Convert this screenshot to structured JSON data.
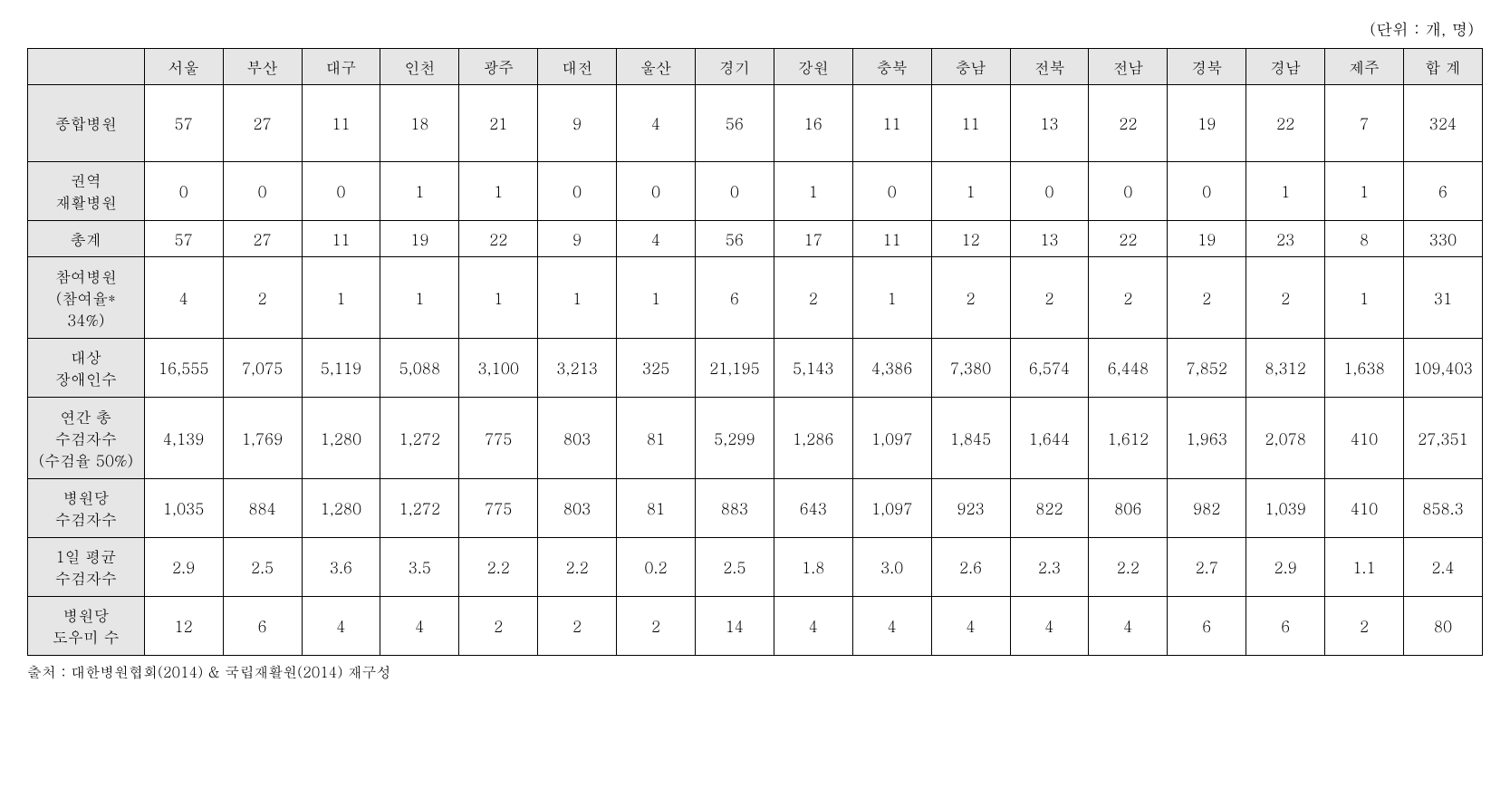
{
  "unit_label": "(단위 : 개, 명)",
  "source_note": "출처 : 대한병원협회(2014) & 국립재활원(2014) 재구성",
  "table": {
    "columns": [
      "",
      "서울",
      "부산",
      "대구",
      "인천",
      "광주",
      "대전",
      "울산",
      "경기",
      "강원",
      "충북",
      "충남",
      "전북",
      "전남",
      "경북",
      "경남",
      "제주",
      "합 계"
    ],
    "rows": [
      {
        "label": "종합병원",
        "height_class": "tall-row",
        "values": [
          "57",
          "27",
          "11",
          "18",
          "21",
          "9",
          "4",
          "56",
          "16",
          "11",
          "11",
          "13",
          "22",
          "19",
          "22",
          "7",
          "324"
        ]
      },
      {
        "label": "권역\n재활병원",
        "height_class": "med-row",
        "values": [
          "0",
          "0",
          "0",
          "1",
          "1",
          "0",
          "0",
          "0",
          "1",
          "0",
          "1",
          "0",
          "0",
          "0",
          "1",
          "1",
          "6"
        ]
      },
      {
        "label": "총계",
        "height_class": "short-row",
        "values": [
          "57",
          "27",
          "11",
          "19",
          "22",
          "9",
          "4",
          "56",
          "17",
          "11",
          "12",
          "13",
          "22",
          "19",
          "23",
          "8",
          "330"
        ]
      },
      {
        "label": "참여병원\n(참여율*\n34%)",
        "height_class": "three-line",
        "values": [
          "4",
          "2",
          "1",
          "1",
          "1",
          "1",
          "1",
          "6",
          "2",
          "1",
          "2",
          "2",
          "2",
          "2",
          "2",
          "1",
          "31"
        ]
      },
      {
        "label": "대상\n장애인수",
        "height_class": "med-row",
        "values": [
          "16,555",
          "7,075",
          "5,119",
          "5,088",
          "3,100",
          "3,213",
          "325",
          "21,195",
          "5,143",
          "4,386",
          "7,380",
          "6,574",
          "6,448",
          "7,852",
          "8,312",
          "1,638",
          "109,403"
        ]
      },
      {
        "label": "연간 총\n수검자수\n(수검율 50%)",
        "height_class": "three-line",
        "values": [
          "4,139",
          "1,769",
          "1,280",
          "1,272",
          "775",
          "803",
          "81",
          "5,299",
          "1,286",
          "1,097",
          "1,845",
          "1,644",
          "1,612",
          "1,963",
          "2,078",
          "410",
          "27,351"
        ]
      },
      {
        "label": "병원당\n수검자수",
        "height_class": "med-row",
        "values": [
          "1,035",
          "884",
          "1,280",
          "1,272",
          "775",
          "803",
          "81",
          "883",
          "643",
          "1,097",
          "923",
          "822",
          "806",
          "982",
          "1,039",
          "410",
          "858.3"
        ]
      },
      {
        "label": "1일 평균\n수검자수",
        "height_class": "med-row",
        "values": [
          "2.9",
          "2.5",
          "3.6",
          "3.5",
          "2.2",
          "2.2",
          "0.2",
          "2.5",
          "1.8",
          "3.0",
          "2.6",
          "2.3",
          "2.2",
          "2.7",
          "2.9",
          "1.1",
          "2.4"
        ]
      },
      {
        "label": "병원당\n도우미 수",
        "height_class": "med-row",
        "values": [
          "12",
          "6",
          "4",
          "4",
          "2",
          "2",
          "2",
          "14",
          "4",
          "4",
          "4",
          "4",
          "4",
          "6",
          "6",
          "2",
          "80"
        ]
      }
    ],
    "styling": {
      "header_bg": "#e6e6e6",
      "border_color": "#000000",
      "text_color": "#000000",
      "background_color": "#ffffff",
      "font_size": 17
    }
  }
}
